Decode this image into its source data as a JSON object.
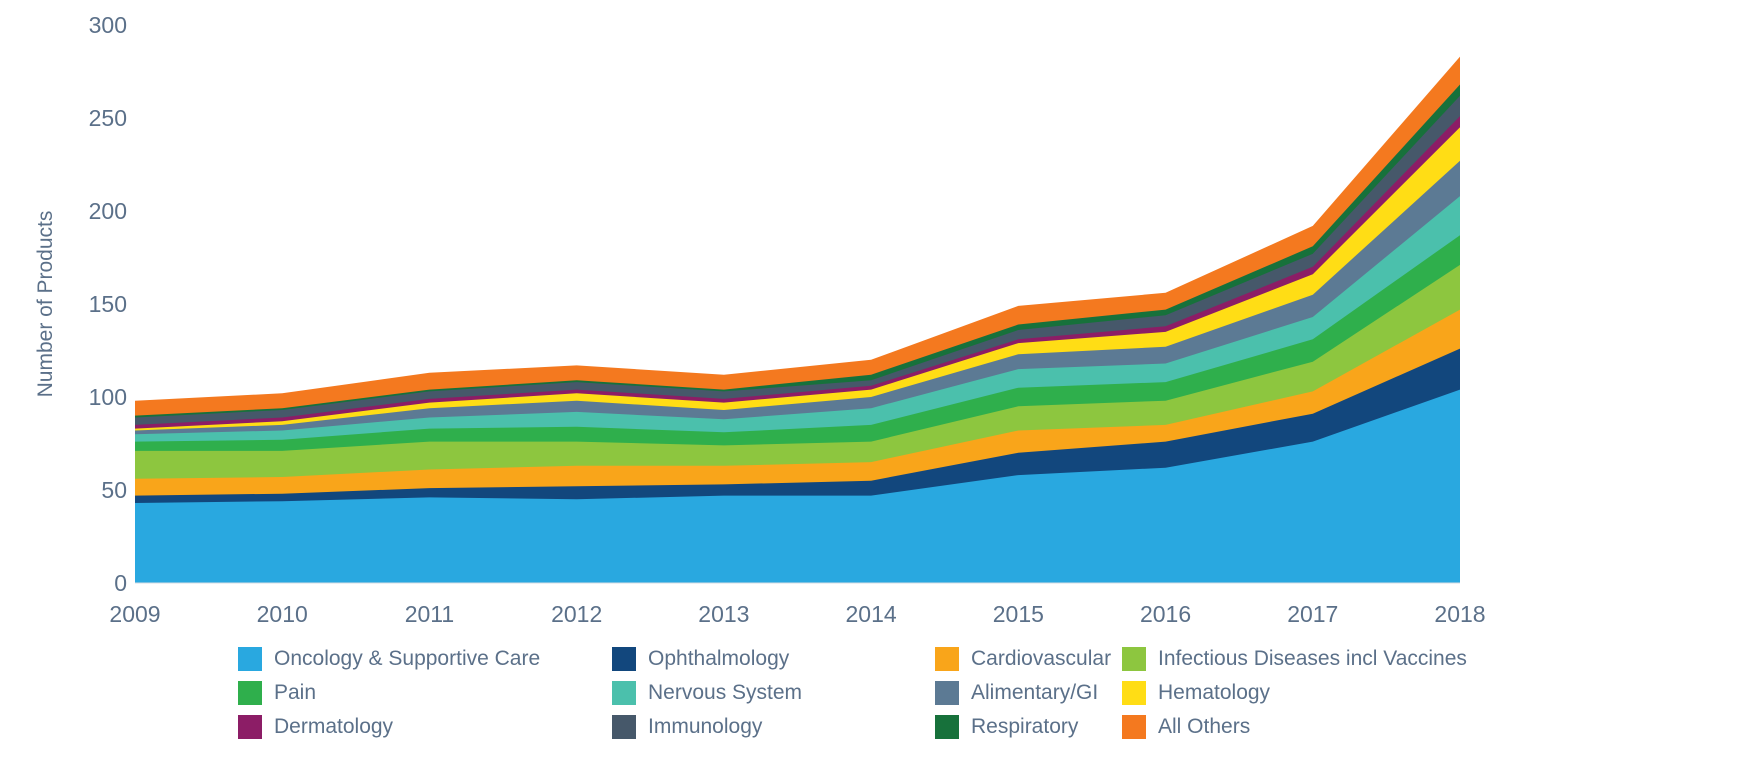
{
  "chart_data": {
    "type": "area",
    "stacked": true,
    "title": "",
    "xlabel": "",
    "ylabel": "Number of Products",
    "ylim": [
      0,
      300
    ],
    "yticks": [
      0,
      50,
      100,
      150,
      200,
      250,
      300
    ],
    "grid": false,
    "legend_position": "bottom",
    "axis_text_color": "#5b7089",
    "x": [
      "2009",
      "2010",
      "2011",
      "2012",
      "2013",
      "2014",
      "2015",
      "2016",
      "2017",
      "2018"
    ],
    "series": [
      {
        "name": "Oncology & Supportive Care",
        "color": "#29a8e0",
        "values": [
          43,
          44,
          46,
          45,
          47,
          47,
          58,
          62,
          76,
          104
        ]
      },
      {
        "name": "Ophthalmology",
        "color": "#12477d",
        "values": [
          4,
          4,
          5,
          7,
          6,
          8,
          12,
          14,
          15,
          22
        ]
      },
      {
        "name": "Cardiovascular",
        "color": "#f9a51a",
        "values": [
          9,
          9,
          10,
          11,
          10,
          10,
          12,
          9,
          12,
          21
        ]
      },
      {
        "name": "Infectious Diseases incl Vaccines",
        "color": "#8dc63f",
        "values": [
          15,
          14,
          15,
          13,
          11,
          11,
          13,
          13,
          16,
          24
        ]
      },
      {
        "name": "Pain",
        "color": "#2faf4c",
        "values": [
          5,
          6,
          7,
          8,
          7,
          9,
          10,
          10,
          12,
          16
        ]
      },
      {
        "name": "Nervous System",
        "color": "#4bc0ac",
        "values": [
          4,
          5,
          6,
          8,
          7,
          9,
          10,
          10,
          12,
          21
        ]
      },
      {
        "name": "Alimentary/GI",
        "color": "#5c7a94",
        "values": [
          2,
          3,
          5,
          6,
          5,
          6,
          8,
          9,
          12,
          19
        ]
      },
      {
        "name": "Hematology",
        "color": "#ffdd15",
        "values": [
          1,
          2,
          3,
          4,
          4,
          4,
          6,
          8,
          11,
          18
        ]
      },
      {
        "name": "Dermatology",
        "color": "#8c1d66",
        "values": [
          2,
          2,
          2,
          2,
          2,
          2,
          2,
          3,
          4,
          6
        ]
      },
      {
        "name": "Immunology",
        "color": "#46586a",
        "values": [
          4,
          4,
          4,
          4,
          4,
          3,
          5,
          6,
          7,
          11
        ]
      },
      {
        "name": "Respiratory",
        "color": "#17713b",
        "values": [
          1,
          1,
          1,
          1,
          1,
          3,
          3,
          3,
          4,
          6
        ]
      },
      {
        "name": "All Others",
        "color": "#f4791f",
        "values": [
          8,
          8,
          9,
          8,
          8,
          8,
          10,
          9,
          11,
          15
        ]
      }
    ]
  }
}
